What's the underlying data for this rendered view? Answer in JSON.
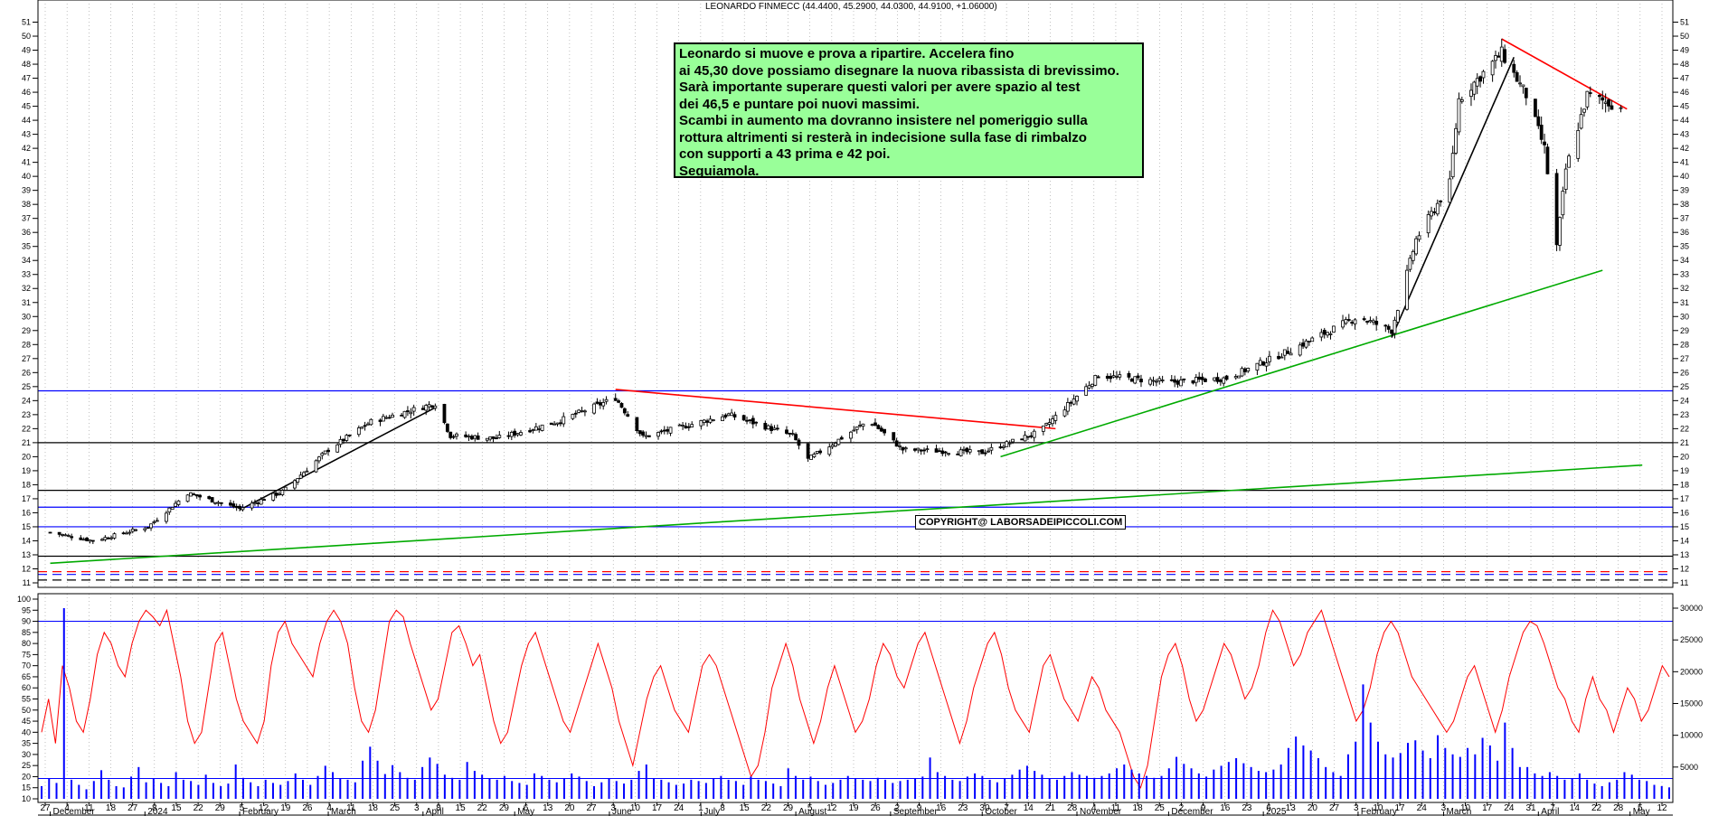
{
  "title": "LEONARDO FINMECC (44.4400, 45.2900, 44.0300, 44.9100, +1.06000)",
  "note_lines": [
    "Leonardo si muove e prova a ripartire. Accelera fino",
    "ai 45,30 dove possiamo disegnare la nuova ribassista di brevissimo.",
    "Sarà importante superare questi valori per avere spazio al test",
    "dei 46,5 e puntare poi nuovi massimi.",
    "Scambi in aumento ma dovranno insistere nel pomeriggio sulla",
    "rottura altrimenti si resterà in indecisione sulla fase di rimbalzo",
    "con supporti a 43 prima e 42 poi.",
    "Seguiamola."
  ],
  "copyright": "COPYRIGHT@ LABORSADEIPICCOLI.COM",
  "colors": {
    "rsi": "#ff0000",
    "volume": "#0000ff",
    "support_blue": "#0000ff",
    "trend_green": "#00aa00",
    "trend_red": "#ff0000",
    "trend_purple": "#aa00aa",
    "note_bg": "#99ff99"
  },
  "chart_data": [
    {
      "type": "candlestick",
      "panel": "price",
      "title": "LEONARDO FINMECC (44.4400, 45.2900, 44.0300, 44.9100, +1.06000)",
      "ylim": [
        11,
        52
      ],
      "ticks": [
        11,
        12,
        13,
        14,
        15,
        16,
        17,
        18,
        19,
        20,
        21,
        22,
        23,
        24,
        25,
        26,
        27,
        28,
        29,
        30,
        31,
        32,
        33,
        34,
        35,
        36,
        37,
        38,
        39,
        40,
        41,
        42,
        43,
        44,
        45,
        46,
        47,
        48,
        49,
        50,
        51
      ],
      "date_ticks": [
        "27",
        "4",
        "11",
        "18",
        "27",
        "8",
        "15",
        "22",
        "29",
        "5",
        "12",
        "19",
        "26",
        "4",
        "11",
        "18",
        "25",
        "3",
        "8",
        "15",
        "22",
        "29",
        "6",
        "13",
        "20",
        "27",
        "3",
        "10",
        "17",
        "24",
        "1",
        "8",
        "15",
        "22",
        "29",
        "5",
        "12",
        "19",
        "26",
        "2",
        "9",
        "16",
        "23",
        "30",
        "7",
        "14",
        "21",
        "28",
        "4",
        "11",
        "18",
        "25",
        "2",
        "9",
        "16",
        "23",
        "6",
        "13",
        "20",
        "27",
        "3",
        "10",
        "17",
        "24",
        "3",
        "10",
        "17",
        "24",
        "31",
        "7",
        "14",
        "22",
        "28",
        "5",
        "12"
      ],
      "month_labels": [
        "December",
        "2024",
        "February",
        "March",
        "April",
        "May",
        "June",
        "July",
        "August",
        "September",
        "October",
        "November",
        "December",
        "2025",
        "February",
        "March",
        "April",
        "May"
      ],
      "close_anchors": [
        {
          "date": "2023-12-01",
          "close": 14.6
        },
        {
          "date": "2023-12-15",
          "close": 14.0
        },
        {
          "date": "2024-01-02",
          "close": 15.0
        },
        {
          "date": "2024-01-15",
          "close": 17.4
        },
        {
          "date": "2024-02-01",
          "close": 16.3
        },
        {
          "date": "2024-02-15",
          "close": 17.5
        },
        {
          "date": "2024-03-01",
          "close": 20.5
        },
        {
          "date": "2024-03-15",
          "close": 22.5
        },
        {
          "date": "2024-04-05",
          "close": 23.8
        },
        {
          "date": "2024-04-10",
          "close": 21.5
        },
        {
          "date": "2024-04-25",
          "close": 21.3
        },
        {
          "date": "2024-05-15",
          "close": 22.5
        },
        {
          "date": "2024-06-03",
          "close": 24.2
        },
        {
          "date": "2024-06-12",
          "close": 21.4
        },
        {
          "date": "2024-07-10",
          "close": 23.0
        },
        {
          "date": "2024-07-31",
          "close": 21.5
        },
        {
          "date": "2024-08-05",
          "close": 19.8
        },
        {
          "date": "2024-08-25",
          "close": 22.6
        },
        {
          "date": "2024-09-05",
          "close": 20.5
        },
        {
          "date": "2024-10-01",
          "close": 20.3
        },
        {
          "date": "2024-10-20",
          "close": 21.8
        },
        {
          "date": "2024-11-08",
          "close": 25.8
        },
        {
          "date": "2024-12-01",
          "close": 25.3
        },
        {
          "date": "2024-12-20",
          "close": 25.6
        },
        {
          "date": "2025-01-10",
          "close": 27.6
        },
        {
          "date": "2025-02-01",
          "close": 30.0
        },
        {
          "date": "2025-02-12",
          "close": 29.0
        },
        {
          "date": "2025-02-20",
          "close": 35.5
        },
        {
          "date": "2025-03-03",
          "close": 39.5
        },
        {
          "date": "2025-03-06",
          "close": 45.5
        },
        {
          "date": "2025-03-20",
          "close": 48.8
        },
        {
          "date": "2025-03-28",
          "close": 45.8
        },
        {
          "date": "2025-04-03",
          "close": 42.0
        },
        {
          "date": "2025-04-07",
          "close": 35.0
        },
        {
          "date": "2025-04-10",
          "close": 40.5
        },
        {
          "date": "2025-04-17",
          "close": 45.8
        },
        {
          "date": "2025-04-28",
          "close": 44.9
        }
      ],
      "horizontal_levels": [
        {
          "value": 24.7,
          "color": "#0000ff"
        },
        {
          "value": 21.0,
          "color": "#000000"
        },
        {
          "value": 17.6,
          "color": "#000000"
        },
        {
          "value": 16.4,
          "color": "#0000ff"
        },
        {
          "value": 15.0,
          "color": "#0000ff"
        },
        {
          "value": 12.9,
          "color": "#000000"
        },
        {
          "value": 11.8,
          "color": "#ff0000",
          "dash": true
        },
        {
          "value": 11.6,
          "color": "#0000ff",
          "dash": true
        },
        {
          "value": 11.2,
          "color": "#000000",
          "dash": true
        }
      ],
      "trendlines": [
        {
          "from": [
            "2023-12-01",
            12.4
          ],
          "to": [
            "2025-05-05",
            19.4
          ],
          "color": "#00aa00"
        },
        {
          "from": [
            "2024-10-07",
            20.0
          ],
          "to": [
            "2025-04-22",
            33.3
          ],
          "color": "#00aa00"
        },
        {
          "from": [
            "2024-06-03",
            24.8
          ],
          "to": [
            "2024-10-25",
            22.0
          ],
          "color": "#ff0000"
        },
        {
          "from": [
            "2025-03-20",
            49.8
          ],
          "to": [
            "2025-04-30",
            44.8
          ],
          "color": "#ff0000"
        },
        {
          "from": [
            "2025-02-12",
            28.5
          ],
          "to": [
            "2025-03-24",
            48.5
          ],
          "color": "#000000"
        },
        {
          "from": [
            "2024-02-01",
            16.2
          ],
          "to": [
            "2024-04-05",
            23.5
          ],
          "color": "#000000"
        }
      ]
    },
    {
      "type": "line",
      "panel": "oscillator",
      "ylim": [
        10,
        100
      ],
      "ticks": [
        10,
        15,
        20,
        25,
        30,
        35,
        40,
        45,
        50,
        55,
        60,
        65,
        70,
        75,
        80,
        85,
        90,
        95,
        100
      ],
      "reference_line": 90,
      "values": [
        40,
        55,
        35,
        70,
        60,
        45,
        40,
        55,
        75,
        85,
        80,
        70,
        65,
        80,
        90,
        95,
        92,
        88,
        95,
        80,
        65,
        45,
        35,
        40,
        60,
        80,
        85,
        70,
        55,
        45,
        40,
        35,
        45,
        70,
        85,
        90,
        80,
        75,
        70,
        65,
        80,
        90,
        95,
        90,
        80,
        60,
        45,
        40,
        50,
        70,
        90,
        95,
        92,
        80,
        70,
        60,
        50,
        55,
        70,
        85,
        88,
        80,
        70,
        75,
        60,
        45,
        35,
        40,
        55,
        70,
        80,
        85,
        75,
        65,
        55,
        45,
        40,
        50,
        60,
        70,
        80,
        70,
        60,
        45,
        35,
        25,
        40,
        55,
        65,
        70,
        60,
        50,
        45,
        40,
        55,
        70,
        75,
        70,
        60,
        50,
        40,
        30,
        20,
        25,
        40,
        60,
        70,
        80,
        70,
        55,
        45,
        35,
        45,
        60,
        70,
        60,
        50,
        40,
        45,
        55,
        70,
        80,
        75,
        65,
        60,
        70,
        80,
        85,
        75,
        65,
        55,
        45,
        35,
        45,
        60,
        70,
        80,
        85,
        75,
        60,
        50,
        45,
        40,
        55,
        70,
        75,
        65,
        55,
        50,
        45,
        55,
        65,
        60,
        50,
        45,
        40,
        30,
        20,
        15,
        25,
        45,
        65,
        75,
        80,
        70,
        55,
        45,
        50,
        60,
        70,
        80,
        75,
        65,
        55,
        60,
        70,
        85,
        95,
        90,
        80,
        70,
        75,
        85,
        90,
        95,
        85,
        75,
        65,
        55,
        45,
        50,
        60,
        75,
        85,
        90,
        85,
        75,
        65,
        60,
        55,
        50,
        45,
        40,
        45,
        55,
        65,
        70,
        60,
        50,
        40,
        50,
        65,
        75,
        85,
        90,
        88,
        80,
        70,
        60,
        55,
        45,
        40,
        55,
        65,
        55,
        50,
        40,
        50,
        60,
        55,
        45,
        50,
        60,
        70,
        65
      ]
    },
    {
      "type": "bar",
      "panel": "volume",
      "ylim": [
        0,
        30000
      ],
      "ticks": [
        5000,
        10000,
        15000,
        20000,
        25000,
        30000
      ],
      "reference_line": 3200,
      "values": [
        2000,
        3200,
        2500,
        30000,
        3000,
        2200,
        1500,
        2800,
        4500,
        3000,
        2000,
        1800,
        3500,
        5000,
        2600,
        3200,
        2500,
        2000,
        4200,
        3000,
        2800,
        2200,
        3800,
        2500,
        2000,
        2400,
        5400,
        3300,
        2600,
        2000,
        3000,
        2500,
        2200,
        2800,
        4000,
        3000,
        2200,
        3600,
        5200,
        4200,
        3200,
        3000,
        2600,
        6000,
        8200,
        6000,
        3900,
        5300,
        4200,
        3300,
        3000,
        5000,
        6500,
        5500,
        3800,
        3300,
        3000,
        5800,
        4400,
        3800,
        3200,
        3000,
        3600,
        2800,
        2500,
        2200,
        4000,
        3600,
        3000,
        2600,
        3200,
        4000,
        3500,
        2800,
        2000,
        2600,
        3200,
        2800,
        2400,
        3000,
        4400,
        5400,
        3200,
        3000,
        2600,
        2200,
        2400,
        3000,
        2800,
        2500,
        3200,
        3600,
        3000,
        2800,
        2200,
        3500,
        3000,
        2800,
        2400,
        2000,
        4800,
        3600,
        3000,
        3500,
        2800,
        2200,
        2500,
        3000,
        3600,
        3200,
        3000,
        2800,
        3300,
        3000,
        2500,
        2800,
        3000,
        3200,
        3500,
        6500,
        4200,
        3600,
        3000,
        2800,
        3500,
        4000,
        3600,
        3000,
        2600,
        3200,
        3800,
        4600,
        5200,
        4400,
        3800,
        3200,
        3000,
        3600,
        4200,
        3800,
        3600,
        3300,
        3600,
        4000,
        4800,
        5400,
        4600,
        4000,
        3600,
        3300,
        3600,
        4800,
        6600,
        5500,
        4800,
        4000,
        3500,
        4600,
        5200,
        5800,
        6400,
        5600,
        5000,
        4400,
        4200,
        4600,
        5400,
        8000,
        9800,
        8400,
        7600,
        6400,
        5000,
        4200,
        3600,
        7000,
        9000,
        18000,
        12000,
        9000,
        7000,
        6500,
        7200,
        8800,
        9200,
        7600,
        6400,
        10000,
        8000,
        7000,
        6600,
        8000,
        7000,
        9600,
        8400,
        6000,
        12000,
        8000,
        5000,
        5000,
        4000,
        3600,
        4200,
        3600,
        3000,
        3200,
        4000,
        3000,
        2400,
        2000,
        2600,
        3000,
        4200,
        3800,
        3000,
        2800,
        2200,
        2000,
        1800
      ]
    }
  ]
}
